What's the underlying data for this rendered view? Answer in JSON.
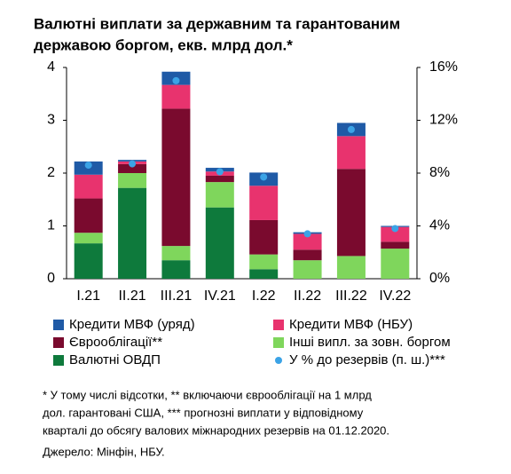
{
  "chart_data": {
    "type": "bar",
    "stacked": true,
    "title": [
      "Валютні виплати за державним та гарантованим",
      "державою боргом, екв. млрд дол.*"
    ],
    "categories": [
      "I.21",
      "II.21",
      "III.21",
      "IV.21",
      "I.22",
      "II.22",
      "III.22",
      "IV.22"
    ],
    "series": [
      {
        "name": "Валютні ОВДП",
        "color": "#0e7a3c",
        "values": [
          0.67,
          1.72,
          0.35,
          1.35,
          0.18,
          0,
          0,
          0
        ]
      },
      {
        "name": "Інші випл. за зовн. боргом",
        "color": "#7fd65c",
        "values": [
          0.2,
          0.28,
          0.27,
          0.48,
          0.28,
          0.35,
          0.43,
          0.57
        ]
      },
      {
        "name": "Єврооблігації**",
        "color": "#7a0a2e",
        "values": [
          0.65,
          0.17,
          2.6,
          0.12,
          0.65,
          0.2,
          1.65,
          0.13
        ]
      },
      {
        "name": "Кредити МВФ (НБУ)",
        "color": "#e8336e",
        "values": [
          0.45,
          0.05,
          0.45,
          0.08,
          0.65,
          0.3,
          0.62,
          0.28
        ]
      },
      {
        "name": "Кредити МВФ (уряд)",
        "color": "#1f5aa6",
        "values": [
          0.25,
          0.03,
          0.25,
          0.07,
          0.25,
          0.03,
          0.25,
          0.02
        ]
      },
      {
        "name": "У % до резервів (п. ш.)***",
        "color": "#3ba3e6",
        "axis": "y2",
        "marker": "dot",
        "values": [
          8.6,
          8.7,
          15.0,
          8.1,
          7.7,
          3.4,
          11.3,
          3.8
        ]
      }
    ],
    "ylim": [
      0,
      4
    ],
    "yticks": [
      0,
      1,
      2,
      3,
      4
    ],
    "y2lim": [
      0,
      16
    ],
    "y2ticks": [
      {
        "value": 0,
        "label": "0%"
      },
      {
        "value": 4,
        "label": "4%"
      },
      {
        "value": 8,
        "label": "8%"
      },
      {
        "value": 12,
        "label": "12%"
      },
      {
        "value": 16,
        "label": "16%"
      }
    ],
    "legend_order": [
      4,
      3,
      2,
      1,
      0,
      5
    ],
    "notes": [
      "* У тому числі відсотки, ** включаючи єврооблігації на 1 млрд",
      "дол. гарантовані США, *** прогнозні виплати у відповідному",
      "кварталі до обсягу валових міжнародних резервів на 01.12.2020."
    ],
    "source": "Джерело: Мінфін, НБУ."
  }
}
